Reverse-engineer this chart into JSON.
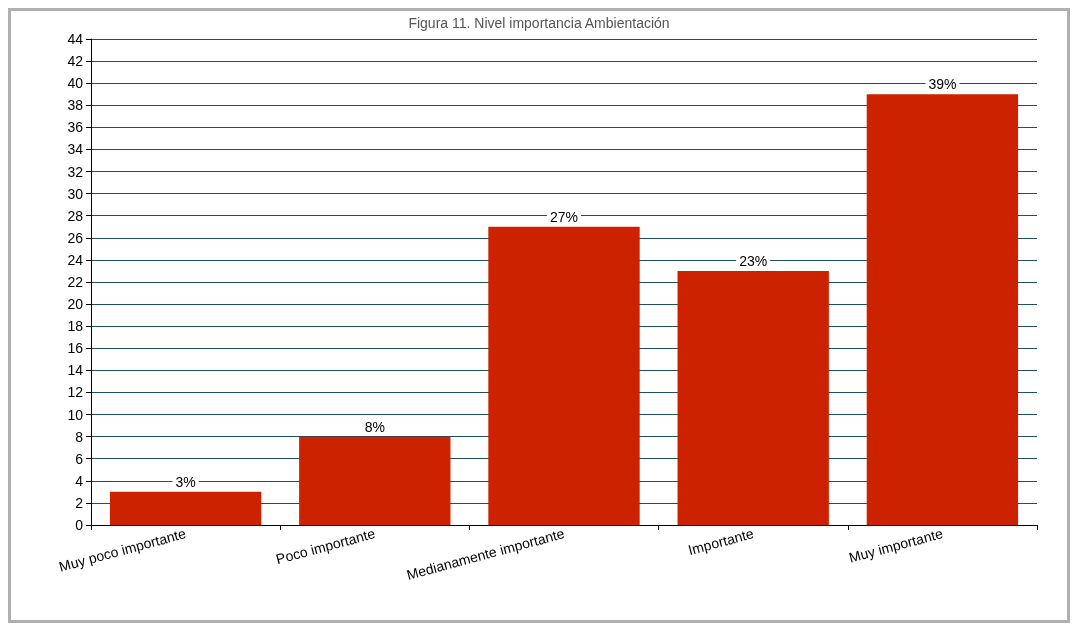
{
  "chart_data": {
    "type": "bar",
    "title": "Figura 11. Nivel importancia Ambientación",
    "categories": [
      "Muy poco importante",
      "Poco importante",
      "Medianamente importante",
      "Importante",
      "Muy importante"
    ],
    "values": [
      3,
      8,
      27,
      23,
      39
    ],
    "value_labels": [
      "3%",
      "8%",
      "27%",
      "23%",
      "39%"
    ],
    "color": "#cc2200",
    "ylim": [
      0,
      44
    ],
    "yticks": [
      0,
      2,
      4,
      6,
      8,
      10,
      12,
      14,
      16,
      18,
      20,
      22,
      24,
      26,
      28,
      30,
      32,
      34,
      36,
      38,
      40,
      42,
      44
    ],
    "grid": "y"
  }
}
